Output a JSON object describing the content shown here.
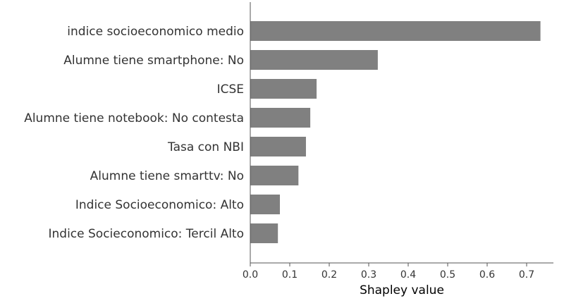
{
  "chart_data": {
    "type": "bar",
    "orientation": "horizontal",
    "title": "",
    "xlabel": "Shapley value",
    "ylabel": "",
    "xlim": [
      0,
      0.77
    ],
    "xticks": [
      0.0,
      0.1,
      0.2,
      0.3,
      0.4,
      0.5,
      0.6,
      0.7
    ],
    "tick_labels": [
      "0.0",
      "0.1",
      "0.2",
      "0.3",
      "0.4",
      "0.5",
      "0.6",
      "0.7"
    ],
    "categories": [
      "indice socioeconomico medio",
      "Alumne tiene smartphone: No",
      "ICSE",
      "Alumne tiene notebook: No contesta",
      "Tasa con NBI",
      "Alumne tiene smarttv: No",
      "Indice Socioeconomico: Alto",
      "Indice Socieconomico: Tercil Alto"
    ],
    "values": [
      0.735,
      0.323,
      0.168,
      0.152,
      0.141,
      0.122,
      0.075,
      0.07
    ],
    "bar_color": "#808080",
    "grid": false,
    "legend": "none"
  }
}
